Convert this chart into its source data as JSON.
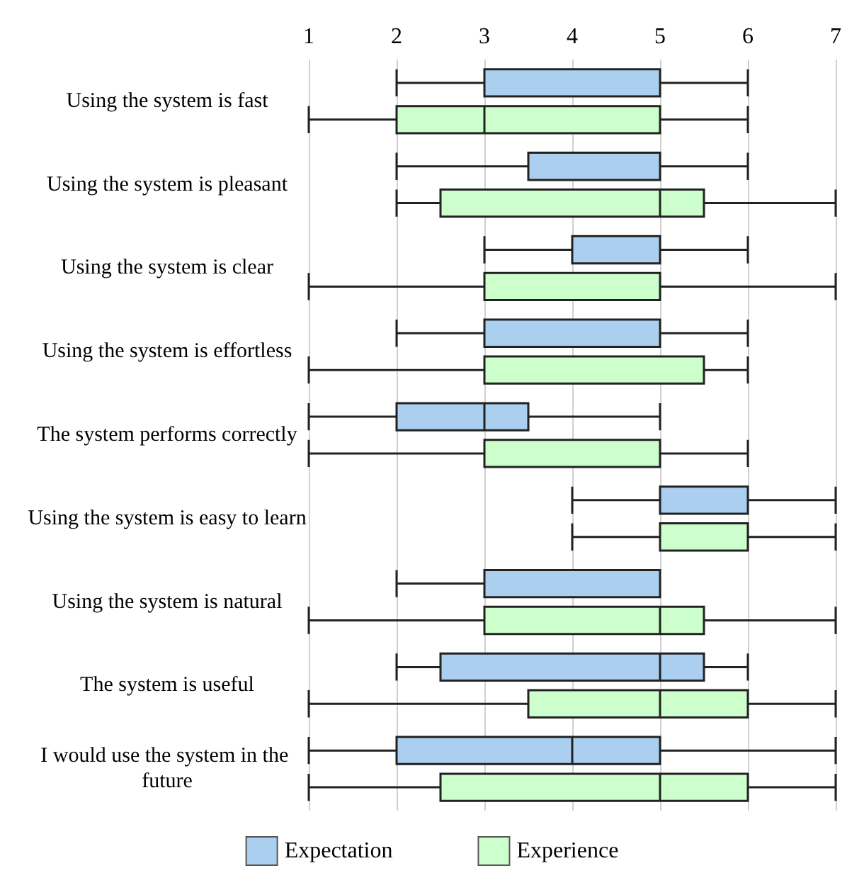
{
  "chart_data": {
    "type": "box",
    "orientation": "horizontal",
    "categories": [
      "Using the system is fast",
      "Using the system is pleasant",
      "Using the system is clear",
      "Using the system is effortless",
      "The system performs correctly",
      "Using the system is easy to learn",
      "Using the system is natural",
      "The system is useful",
      "I would use the system in the future"
    ],
    "xlim": [
      1,
      7
    ],
    "xticks": [
      1,
      2,
      3,
      4,
      5,
      6,
      7
    ],
    "grid": "x",
    "legend": "bottom",
    "series": [
      {
        "name": "Expectation",
        "color": "#abcfee",
        "boxes": [
          {
            "low": 2,
            "q1": 3,
            "median": 3,
            "q3": 5,
            "high": 6
          },
          {
            "low": 2,
            "q1": 3.5,
            "median": 5,
            "q3": 5,
            "high": 6
          },
          {
            "low": 3,
            "q1": 4,
            "median": 4,
            "q3": 5,
            "high": 6
          },
          {
            "low": 2,
            "q1": 3,
            "median": 3,
            "q3": 5,
            "high": 6
          },
          {
            "low": 1,
            "q1": 2,
            "median": 3,
            "q3": 3.5,
            "high": 5
          },
          {
            "low": 4,
            "q1": 5,
            "median": 5,
            "q3": 6,
            "high": 7
          },
          {
            "low": 2,
            "q1": 3,
            "median": 5,
            "q3": 5,
            "high": 5
          },
          {
            "low": 2,
            "q1": 2.5,
            "median": 5,
            "q3": 5.5,
            "high": 6
          },
          {
            "low": 1,
            "q1": 2,
            "median": 4,
            "q3": 5,
            "high": 7
          }
        ]
      },
      {
        "name": "Experience",
        "color": "#ccffcc",
        "boxes": [
          {
            "low": 1,
            "q1": 2,
            "median": 3,
            "q3": 5,
            "high": 6
          },
          {
            "low": 2,
            "q1": 2.5,
            "median": 5,
            "q3": 5.5,
            "high": 7
          },
          {
            "low": 1,
            "q1": 3,
            "median": 3,
            "q3": 5,
            "high": 7
          },
          {
            "low": 1,
            "q1": 3,
            "median": 3,
            "q3": 5.5,
            "high": 6
          },
          {
            "low": 1,
            "q1": 3,
            "median": 5,
            "q3": 5,
            "high": 6
          },
          {
            "low": 4,
            "q1": 5,
            "median": 6,
            "q3": 6,
            "high": 7
          },
          {
            "low": 1,
            "q1": 3,
            "median": 5,
            "q3": 5.5,
            "high": 7
          },
          {
            "low": 1,
            "q1": 3.5,
            "median": 5,
            "q3": 6,
            "high": 7
          },
          {
            "low": 1,
            "q1": 2.5,
            "median": 5,
            "q3": 6,
            "high": 7
          }
        ]
      }
    ]
  }
}
